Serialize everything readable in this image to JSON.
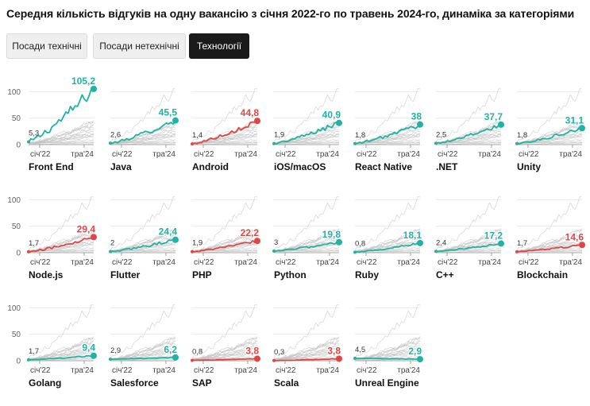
{
  "page": {
    "title": "Середня кількість відгуків на одну вакансію з січня 2022-го по травень 2024-го, динаміка за категоріями"
  },
  "tabs": [
    {
      "label": "Посади технічні",
      "active": false
    },
    {
      "label": "Посади нетехнічні",
      "active": false
    },
    {
      "label": "Технології",
      "active": true
    }
  ],
  "colors": {
    "growth": "#1fb3a4",
    "decline": "#e04545",
    "background_lines": "#c4c4c4",
    "grid": "#e6e6e6",
    "axis": "#888888"
  },
  "chart_data": {
    "type": "line",
    "layout": "small-multiples",
    "y_ticks": [
      "100",
      "50",
      "0"
    ],
    "ylim": [
      0,
      120
    ],
    "x_tick_labels": [
      "січ'22",
      "тра'24"
    ],
    "series": [
      {
        "name": "Front End",
        "start": "5,3",
        "end": "105,2",
        "start_value": 5.3,
        "end_value": 105.2,
        "color": "growth"
      },
      {
        "name": "Java",
        "start": "2,6",
        "end": "45,5",
        "start_value": 2.6,
        "end_value": 45.5,
        "color": "growth"
      },
      {
        "name": "Android",
        "start": "1,4",
        "end": "44,8",
        "start_value": 1.4,
        "end_value": 44.8,
        "color": "decline"
      },
      {
        "name": "iOS/macOS",
        "start": "1,9",
        "end": "40,9",
        "start_value": 1.9,
        "end_value": 40.9,
        "color": "growth"
      },
      {
        "name": "React Native",
        "start": "1,8",
        "end": "38",
        "start_value": 1.8,
        "end_value": 38,
        "color": "growth"
      },
      {
        "name": ".NET",
        "start": "2,5",
        "end": "37,7",
        "start_value": 2.5,
        "end_value": 37.7,
        "color": "growth"
      },
      {
        "name": "Unity",
        "start": "1,8",
        "end": "31,1",
        "start_value": 1.8,
        "end_value": 31.1,
        "color": "growth"
      },
      {
        "name": "Node.js",
        "start": "1,7",
        "end": "29,4",
        "start_value": 1.7,
        "end_value": 29.4,
        "color": "decline"
      },
      {
        "name": "Flutter",
        "start": "2",
        "end": "24,4",
        "start_value": 2,
        "end_value": 24.4,
        "color": "growth"
      },
      {
        "name": "PHP",
        "start": "1,9",
        "end": "22,2",
        "start_value": 1.9,
        "end_value": 22.2,
        "color": "decline"
      },
      {
        "name": "Python",
        "start": "3",
        "end": "19,8",
        "start_value": 3,
        "end_value": 19.8,
        "color": "growth"
      },
      {
        "name": "Ruby",
        "start": "0,8",
        "end": "18,1",
        "start_value": 0.8,
        "end_value": 18.1,
        "color": "growth"
      },
      {
        "name": "C++",
        "start": "2,4",
        "end": "17,2",
        "start_value": 2.4,
        "end_value": 17.2,
        "color": "growth"
      },
      {
        "name": "Blockchain",
        "start": "1,7",
        "end": "14,6",
        "start_value": 1.7,
        "end_value": 14.6,
        "color": "decline"
      },
      {
        "name": "Golang",
        "start": "1,7",
        "end": "9,4",
        "start_value": 1.7,
        "end_value": 9.4,
        "color": "growth"
      },
      {
        "name": "Salesforce",
        "start": "2,9",
        "end": "6,2",
        "start_value": 2.9,
        "end_value": 6.2,
        "color": "growth"
      },
      {
        "name": "SAP",
        "start": "0,8",
        "end": "3,8",
        "start_value": 0.8,
        "end_value": 3.8,
        "color": "decline"
      },
      {
        "name": "Scala",
        "start": "0,3",
        "end": "3,8",
        "start_value": 0.3,
        "end_value": 3.8,
        "color": "decline"
      },
      {
        "name": "Unreal Engine",
        "start": "4,5",
        "end": "2,9",
        "start_value": 4.5,
        "end_value": 2.9,
        "color": "growth"
      }
    ]
  }
}
